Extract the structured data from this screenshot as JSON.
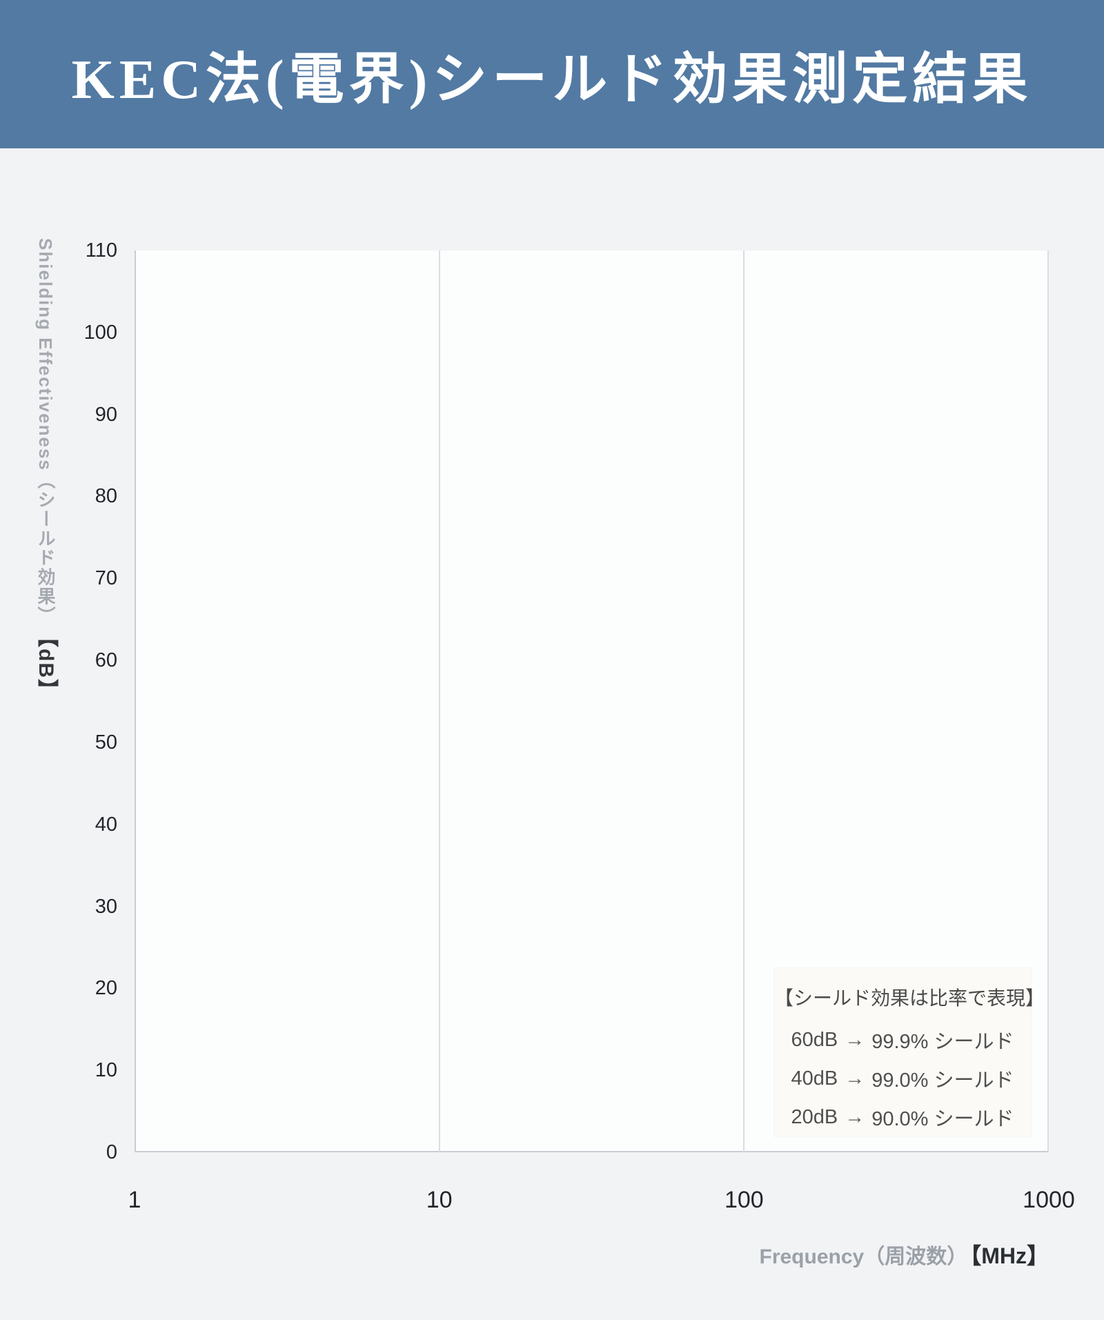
{
  "header": {
    "title": "KEC法(電界)シールド効果測定結果"
  },
  "axes": {
    "ylabel_main": "Shielding Effectiveness（シールド効果）",
    "ylabel_unit": "【dB】",
    "xlabel_main": "Frequency（周波数）",
    "xlabel_unit": "【MHz】"
  },
  "annotation_box": {
    "title": "【シールド効果は比率で表現】",
    "rows": [
      {
        "db": "60dB",
        "arrow": "→",
        "pct": "99.9%",
        "label": "シールド"
      },
      {
        "db": "40dB",
        "arrow": "→",
        "pct": "99.0%",
        "label": "シールド"
      },
      {
        "db": "20dB",
        "arrow": "→",
        "pct": "90.0%",
        "label": "シールド"
      }
    ]
  },
  "chart_data": {
    "type": "line",
    "title": "KEC法(電界)シールド効果測定結果",
    "xlabel": "Frequency（周波数）【MHz】",
    "ylabel": "Shielding Effectiveness（シールド効果）【dB】",
    "x_scale": "log",
    "xlim": [
      1,
      1000
    ],
    "ylim": [
      0,
      110
    ],
    "xticks": [
      "1",
      "10",
      "100",
      "1000"
    ],
    "yticks": [
      "0",
      "10",
      "20",
      "30",
      "40",
      "50",
      "60",
      "70",
      "80",
      "90",
      "100",
      "110"
    ],
    "grid": "vertical gridlines at log decades (10, 100) only; no horizontal gridlines",
    "legend": "none",
    "series": []
  },
  "colors": {
    "header_bg": "#527aa3",
    "header_text": "#ffffff",
    "page_bg": "#f2f3f5",
    "plot_bg": "#fcfdfd",
    "grid": "#dadde2",
    "axis_line": "#c8cdd3",
    "tick_text": "#22262b",
    "axis_title_text": "#9ba1a8",
    "unit_text": "#2b2f34",
    "annotation_bg": "#fbfaf6",
    "annotation_text": "#4f4f4f"
  }
}
